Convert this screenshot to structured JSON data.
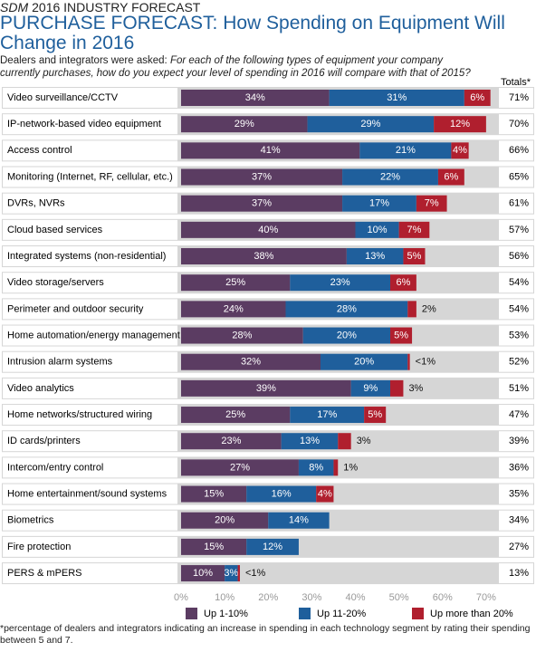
{
  "chart_data": {
    "type": "stacked-bar-horizontal",
    "kicker_brand": "SDM",
    "kicker": "2016 INDUSTRY FORECAST",
    "title": "PURCHASE FORECAST: How Spending on Equipment Will Change in 2016",
    "intro": "Dealers and integrators were asked:",
    "question": "For each of the following types of equipment your company currently purchases, how do you expect your level of spending in 2016 will compare with that of 2015?",
    "totals_header": "Totals*",
    "footnote": "*percentage of dealers and integrators indicating an increase in spending in each technology segment by rating their spending between 5 and 7.",
    "categories": [
      "Video surveillance/CCTV",
      "IP-network-based video equipment",
      "Access control",
      "Monitoring (Internet, RF, cellular, etc.)",
      "DVRs, NVRs",
      "Cloud based services",
      "Integrated systems (non-residential)",
      "Video storage/servers",
      "Perimeter and outdoor security",
      "Home automation/energy management",
      "Intrusion alarm systems",
      "Video analytics",
      "Home networks/structured wiring",
      "ID cards/printers",
      "Intercom/entry control",
      "Home entertainment/sound systems",
      "Biometrics",
      "Fire protection",
      "PERS & mPERS"
    ],
    "series": [
      {
        "name": "Up 1-10%",
        "color": "#5b3c62",
        "values": [
          34,
          29,
          41,
          37,
          37,
          40,
          38,
          25,
          24,
          28,
          32,
          39,
          25,
          23,
          27,
          15,
          20,
          15,
          10
        ],
        "value_labels": [
          "34%",
          "29%",
          "41%",
          "37%",
          "37%",
          "40%",
          "38%",
          "25%",
          "24%",
          "28%",
          "32%",
          "39%",
          "25%",
          "23%",
          "27%",
          "15%",
          "20%",
          "15%",
          "10%"
        ]
      },
      {
        "name": "Up 11-20%",
        "color": "#1f5f9c",
        "values": [
          31,
          29,
          21,
          22,
          17,
          10,
          13,
          23,
          28,
          20,
          20,
          9,
          17,
          13,
          8,
          16,
          14,
          12,
          3
        ],
        "value_labels": [
          "31%",
          "29%",
          "21%",
          "22%",
          "17%",
          "10%",
          "13%",
          "23%",
          "28%",
          "20%",
          "20%",
          "9%",
          "17%",
          "13%",
          "8%",
          "16%",
          "14%",
          "12%",
          "3%"
        ]
      },
      {
        "name": "Up more than 20%",
        "color": "#b01f2e",
        "values": [
          6,
          12,
          4,
          6,
          7,
          7,
          5,
          6,
          2,
          5,
          0.5,
          3,
          5,
          3,
          1,
          4,
          null,
          null,
          0.5
        ],
        "value_labels": [
          "6%",
          "12%",
          "4%",
          "6%",
          "7%",
          "7%",
          "5%",
          "6%",
          "2%",
          "5%",
          "<1%",
          "3%",
          "5%",
          "3%",
          "1%",
          "4%",
          null,
          null,
          "<1%"
        ]
      }
    ],
    "totals": {
      "values": [
        71,
        70,
        66,
        65,
        61,
        57,
        56,
        54,
        54,
        53,
        52,
        51,
        47,
        39,
        36,
        35,
        34,
        27,
        13
      ],
      "value_labels": [
        "71%",
        "70%",
        "66%",
        "65%",
        "61%",
        "57%",
        "56%",
        "54%",
        "54%",
        "53%",
        "52%",
        "51%",
        "47%",
        "39%",
        "36%",
        "35%",
        "34%",
        "27%",
        "13%"
      ]
    },
    "xlim": [
      0,
      72
    ],
    "xticks": [
      {
        "value": 0,
        "label": "0%"
      },
      {
        "value": 10,
        "label": "10%"
      },
      {
        "value": 20,
        "label": "20%"
      },
      {
        "value": 30,
        "label": "30%"
      },
      {
        "value": 40,
        "label": "40%"
      },
      {
        "value": 50,
        "label": "50%"
      },
      {
        "value": 60,
        "label": "60%"
      },
      {
        "value": 70,
        "label": "70%"
      }
    ],
    "grid": false,
    "legend": "bottom"
  }
}
